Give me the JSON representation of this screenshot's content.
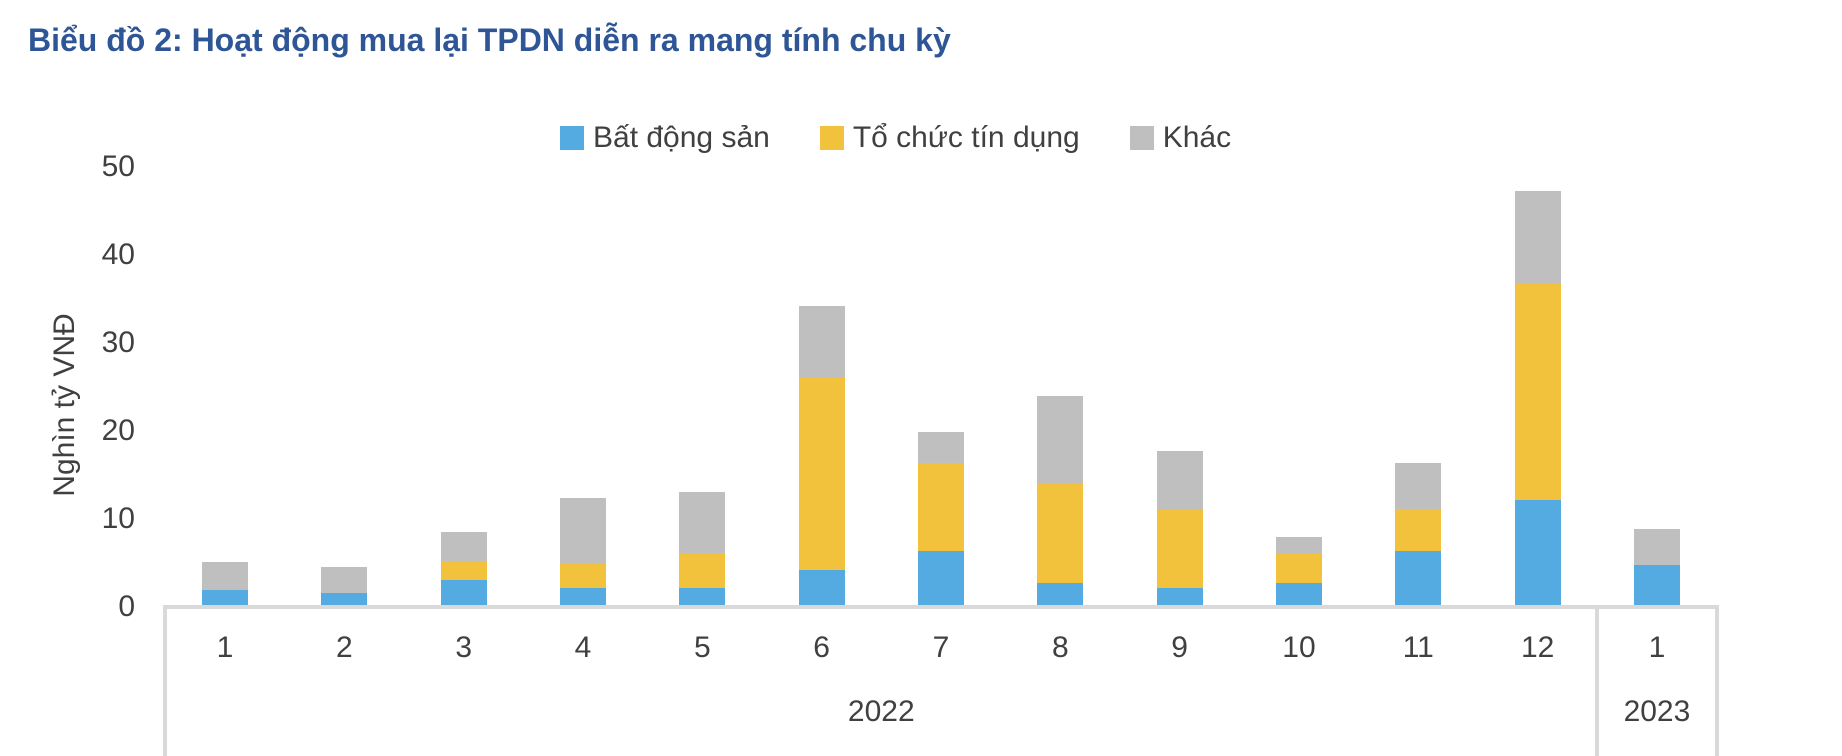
{
  "title": "Biểu đồ 2: Hoạt động mua lại TPDN diễn ra mang tính chu kỳ",
  "legend": {
    "items": [
      {
        "label": "Bất động sản",
        "color": "#54ABE1"
      },
      {
        "label": "Tổ chức tín dụng",
        "color": "#F2C23D"
      },
      {
        "label": "Khác",
        "color": "#BFBFBF"
      }
    ]
  },
  "y_axis": {
    "title": "Nghìn tỷ VNĐ",
    "ticks": [
      "0",
      "10",
      "20",
      "30",
      "40",
      "50"
    ]
  },
  "x_axis": {
    "month_labels": [
      "1",
      "2",
      "3",
      "4",
      "5",
      "6",
      "7",
      "8",
      "9",
      "10",
      "11",
      "12",
      "1"
    ],
    "groups": [
      {
        "label": "2022",
        "months": 12
      },
      {
        "label": "2023",
        "months": 1
      }
    ]
  },
  "colors": {
    "title_text": "#2E5596",
    "axis_text": "#404040",
    "axis_line": "#D9D9D9",
    "series_blue": "#54ABE1",
    "series_yellow": "#F2C23D",
    "series_gray": "#BFBFBF",
    "background": "#FFFFFF"
  },
  "chart_data": {
    "type": "bar",
    "stacked": true,
    "title": "Biểu đồ 2: Hoạt động mua lại TPDN diễn ra mang tính chu kỳ",
    "ylabel": "Nghìn tỷ VNĐ",
    "ylim": [
      0,
      50
    ],
    "yticks": [
      0,
      10,
      20,
      30,
      40,
      50
    ],
    "grid": false,
    "legend_position": "top",
    "categories": [
      "2022-1",
      "2022-2",
      "2022-3",
      "2022-4",
      "2022-5",
      "2022-6",
      "2022-7",
      "2022-8",
      "2022-9",
      "2022-10",
      "2022-11",
      "2022-12",
      "2023-1"
    ],
    "series": [
      {
        "name": "Bất động sản",
        "color": "#54ABE1",
        "values": [
          1.9,
          1.6,
          3.1,
          2.1,
          2.2,
          4.2,
          6.3,
          2.7,
          2.1,
          2.7,
          6.4,
          12.2,
          4.8
        ]
      },
      {
        "name": "Tổ chức tín dụng",
        "color": "#F2C23D",
        "values": [
          0,
          0,
          2.1,
          2.9,
          3.9,
          21.8,
          10.1,
          11.3,
          8.9,
          3.3,
          4.7,
          24.5,
          0
        ]
      },
      {
        "name": "Khác",
        "color": "#BFBFBF",
        "values": [
          3.2,
          2.9,
          3.3,
          7.4,
          7.0,
          8.2,
          3.5,
          10.0,
          6.7,
          2.0,
          5.3,
          10.5,
          4.1
        ]
      }
    ],
    "totals": [
      5.1,
      4.5,
      8.5,
      12.4,
      13.1,
      34.2,
      19.9,
      24.0,
      17.7,
      8.0,
      16.4,
      47.2,
      8.9
    ]
  }
}
